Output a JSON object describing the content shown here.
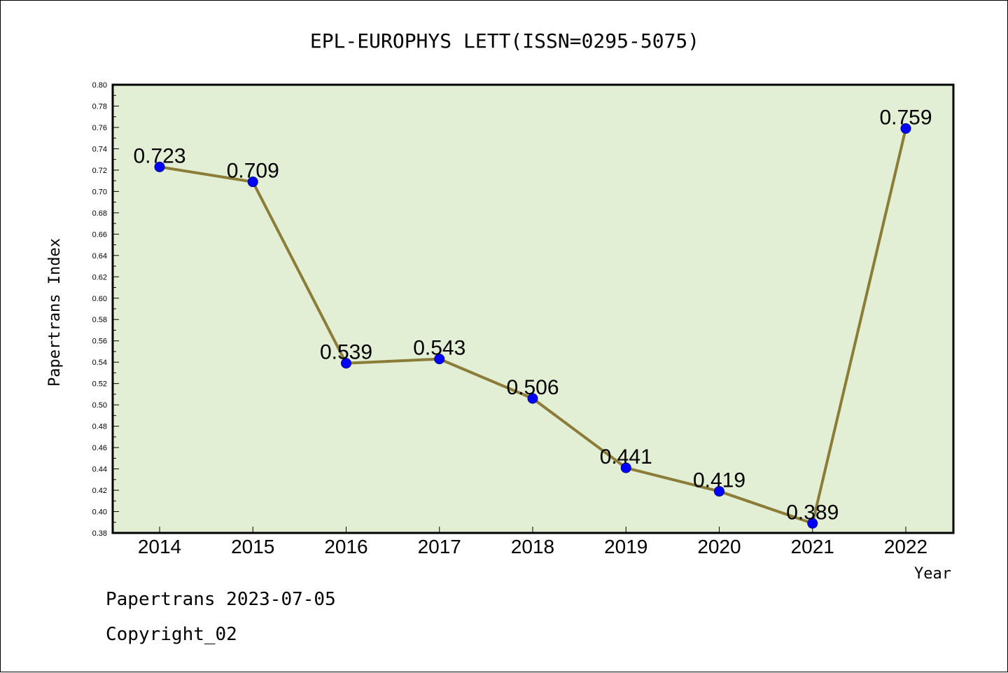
{
  "chart_data": {
    "type": "line",
    "title": "EPL-EUROPHYS LETT(ISSN=0295-5075)",
    "xlabel": "Year",
    "ylabel": "Papertrans Index",
    "categories": [
      "2014",
      "2015",
      "2016",
      "2017",
      "2018",
      "2019",
      "2020",
      "2021",
      "2022"
    ],
    "series": [
      {
        "values": [
          0.723,
          0.709,
          0.539,
          0.543,
          0.506,
          0.441,
          0.419,
          0.389,
          0.759
        ],
        "labels": [
          "0.723",
          "0.709",
          "0.539",
          "0.543",
          "0.506",
          "0.441",
          "0.419",
          "0.389",
          "0.759"
        ]
      }
    ],
    "ylim": [
      0.38,
      0.8
    ],
    "yticks": [
      "0.38",
      "0.40",
      "0.42",
      "0.44",
      "0.46",
      "0.48",
      "0.50",
      "0.52",
      "0.54",
      "0.56",
      "0.58",
      "0.60",
      "0.62",
      "0.64",
      "0.66",
      "0.68",
      "0.70",
      "0.72",
      "0.74",
      "0.76",
      "0.78",
      "0.80"
    ],
    "grid": false,
    "colors": {
      "plot_background": "#e2efd4",
      "line": "#8b7d38",
      "marker": "#0000ff"
    }
  },
  "footer": {
    "line1": "Papertrans 2023-07-05",
    "line2": "Copyright_02"
  }
}
